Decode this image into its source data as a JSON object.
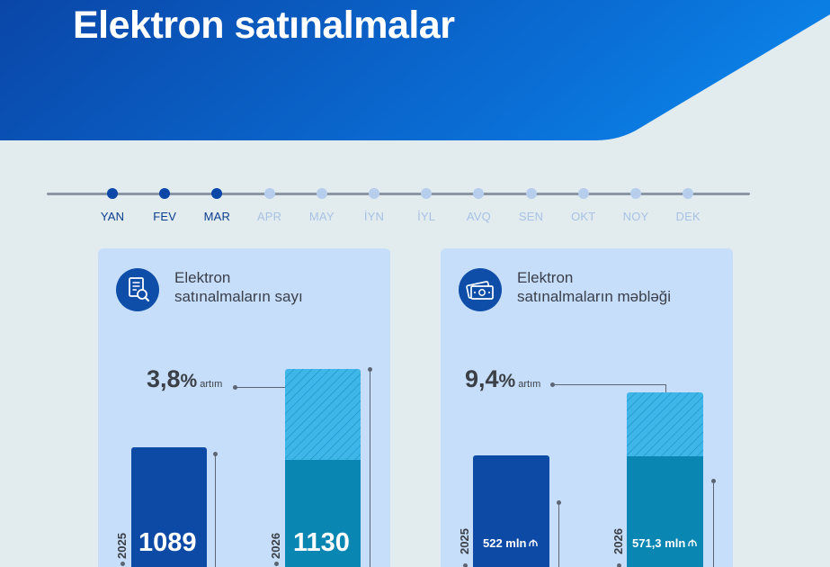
{
  "header": {
    "title": "Elektron satınalmalar",
    "background_colors": [
      "#0a46a8",
      "#0b7be0"
    ]
  },
  "timeline": {
    "months": [
      {
        "label": "YAN",
        "active": true
      },
      {
        "label": "FEV",
        "active": true
      },
      {
        "label": "MAR",
        "active": true
      },
      {
        "label": "APR",
        "active": false
      },
      {
        "label": "MAY",
        "active": false
      },
      {
        "label": "İYN",
        "active": false
      },
      {
        "label": "İYL",
        "active": false
      },
      {
        "label": "AVQ",
        "active": false
      },
      {
        "label": "SEN",
        "active": false
      },
      {
        "label": "OKT",
        "active": false
      },
      {
        "label": "NOY",
        "active": false
      },
      {
        "label": "DEK",
        "active": false
      }
    ]
  },
  "cards": [
    {
      "icon": "document-search-icon",
      "heading_line1": "Elektron",
      "heading_line2": "satınalmaların sayı",
      "growth_value": "3,8",
      "growth_unit": "%",
      "growth_word": "artım",
      "bar_2025": {
        "year": "2025",
        "value_label": "1089",
        "value": 1089
      },
      "bar_2026": {
        "year": "2026",
        "value_label": "1130",
        "value": 1130
      }
    },
    {
      "icon": "money-icon",
      "heading_line1": "Elektron",
      "heading_line2": "satınalmaların məbləği",
      "growth_value": "9,4",
      "growth_unit": "%",
      "growth_word": "artım",
      "bar_2025": {
        "year": "2025",
        "value_label": "522 mln",
        "value": 522,
        "currency_icon": "manat-icon"
      },
      "bar_2026": {
        "year": "2026",
        "value_label": "571,3 mln",
        "value": 571.3,
        "currency_icon": "manat-icon"
      }
    }
  ],
  "colors": {
    "bar_2025": "#0c4aa6",
    "bar_2026": "#0a86b3",
    "growth_hatch": "#3fb6e8",
    "card_background": "#c6defa",
    "page_background": "#e2ebee"
  }
}
